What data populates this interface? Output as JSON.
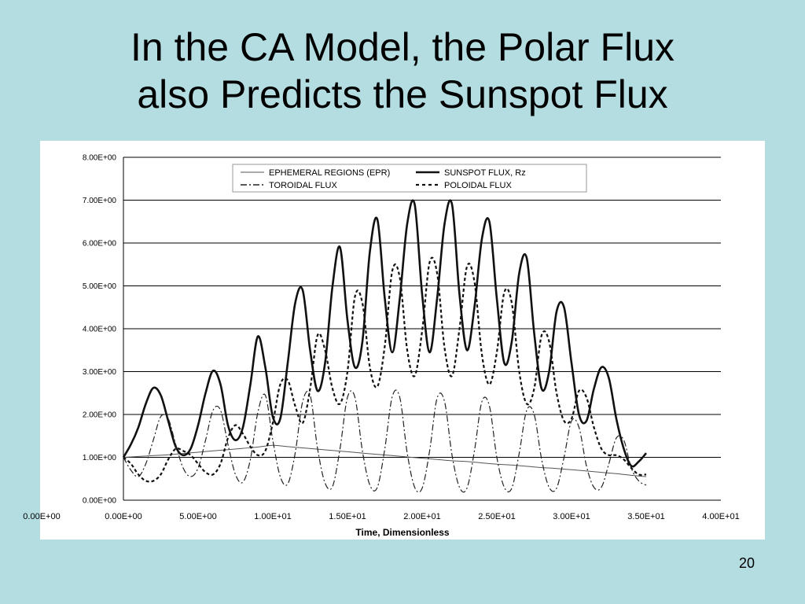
{
  "slide": {
    "title_line1": "In the CA Model, the Polar Flux",
    "title_line2": "also Predicts the Sunspot Flux",
    "page_number": "20"
  },
  "chart_data": {
    "type": "line",
    "title": "",
    "xlabel": "Time, Dimensionless",
    "ylabel": "",
    "xlim": [
      0,
      40
    ],
    "ylim": [
      0,
      8
    ],
    "x_ticks": [
      0,
      5,
      10,
      15,
      20,
      25,
      30,
      35,
      40
    ],
    "x_tick_labels": [
      "0.00E+00",
      "5.00E+00",
      "1.00E+01",
      "1.50E+01",
      "2.00E+01",
      "2.50E+01",
      "3.00E+01",
      "3.50E+01",
      "4.00E+01"
    ],
    "x_tick_label_extra": "0.00E+00",
    "y_ticks": [
      0,
      1,
      2,
      3,
      4,
      5,
      6,
      7,
      8
    ],
    "y_tick_labels": [
      "0.00E+00",
      "1.00E+00",
      "2.00E+00",
      "3.00E+00",
      "4.00E+00",
      "5.00E+00",
      "6.00E+00",
      "7.00E+00",
      "8.00E+00"
    ],
    "grid": "horizontal",
    "legend_placement": "top",
    "series": [
      {
        "name": "EPHEMERAL REGIONS (EPR)",
        "style": "thin",
        "x": [
          0,
          1,
          2,
          3,
          4,
          5,
          6,
          7,
          8,
          9,
          10,
          11,
          12,
          13,
          14,
          15,
          16,
          17,
          18,
          19,
          20,
          21,
          22,
          23,
          24,
          25,
          26,
          27,
          28,
          29,
          30,
          31,
          32,
          33,
          34,
          35
        ],
        "values": [
          1.0,
          1.02,
          1.04,
          1.06,
          1.09,
          1.12,
          1.15,
          1.18,
          1.21,
          1.24,
          1.28,
          1.25,
          1.22,
          1.19,
          1.16,
          1.13,
          1.1,
          1.07,
          1.04,
          1.01,
          0.98,
          0.95,
          0.92,
          0.9,
          0.87,
          0.84,
          0.82,
          0.79,
          0.76,
          0.74,
          0.71,
          0.68,
          0.65,
          0.62,
          0.58,
          0.55
        ]
      },
      {
        "name": "SUNSPOT FLUX, Rz",
        "style": "thick",
        "x": [
          0,
          0.5,
          1,
          1.5,
          2,
          2.5,
          3,
          3.5,
          4,
          4.5,
          5,
          5.5,
          6,
          6.5,
          7,
          7.5,
          8,
          8.5,
          9,
          9.5,
          10,
          10.5,
          11,
          11.5,
          12,
          12.5,
          13,
          13.5,
          14,
          14.5,
          15,
          15.5,
          16,
          16.5,
          17,
          17.5,
          18,
          18.5,
          19,
          19.5,
          20,
          20.5,
          21,
          21.5,
          22,
          22.5,
          23,
          23.5,
          24,
          24.5,
          25,
          25.5,
          26,
          26.5,
          27,
          27.5,
          28,
          28.5,
          29,
          29.5,
          30,
          30.5,
          31,
          31.5,
          32,
          32.5,
          33,
          33.5,
          34,
          34.5,
          35
        ],
        "values": [
          1.0,
          1.3,
          1.7,
          2.25,
          2.62,
          2.45,
          1.85,
          1.25,
          1.05,
          1.2,
          1.75,
          2.5,
          3.02,
          2.7,
          1.75,
          1.4,
          1.7,
          2.7,
          3.82,
          3.1,
          1.95,
          1.9,
          3.2,
          4.6,
          4.9,
          3.5,
          2.55,
          3.2,
          5.0,
          5.9,
          4.2,
          3.1,
          3.7,
          5.8,
          6.55,
          4.7,
          3.45,
          4.7,
          6.45,
          6.9,
          4.8,
          3.45,
          4.7,
          6.45,
          6.9,
          4.8,
          3.5,
          4.5,
          6.1,
          6.5,
          4.7,
          3.2,
          3.7,
          5.3,
          5.65,
          3.9,
          2.6,
          3.0,
          4.4,
          4.5,
          3.2,
          2.0,
          1.85,
          2.6,
          3.1,
          2.85,
          1.9,
          1.2,
          0.8,
          0.9,
          1.1
        ]
      },
      {
        "name": "TOROIDAL FLUX",
        "style": "dash-dot",
        "x": [
          0,
          0.5,
          1,
          1.5,
          2,
          2.5,
          3,
          3.5,
          4,
          4.5,
          5,
          5.5,
          6,
          6.5,
          7,
          7.5,
          8,
          8.5,
          9,
          9.5,
          10,
          10.5,
          11,
          11.5,
          12,
          12.5,
          13,
          13.5,
          14,
          14.5,
          15,
          15.5,
          16,
          16.5,
          17,
          17.5,
          18,
          18.5,
          19,
          19.5,
          20,
          20.5,
          21,
          21.5,
          22,
          22.5,
          23,
          23.5,
          24,
          24.5,
          25,
          25.5,
          26,
          26.5,
          27,
          27.5,
          28,
          28.5,
          29,
          29.5,
          30,
          30.5,
          31,
          31.5,
          32,
          32.5,
          33,
          33.5,
          34,
          34.5,
          35
        ],
        "values": [
          1.0,
          0.7,
          0.55,
          0.85,
          1.4,
          1.95,
          1.9,
          1.3,
          0.75,
          0.55,
          0.75,
          1.4,
          2.1,
          2.1,
          1.3,
          0.6,
          0.42,
          0.95,
          2.05,
          2.45,
          1.4,
          0.55,
          0.38,
          1.1,
          2.3,
          2.45,
          1.2,
          0.4,
          0.32,
          1.2,
          2.4,
          2.4,
          1.15,
          0.35,
          0.3,
          1.2,
          2.42,
          2.4,
          1.1,
          0.3,
          0.28,
          1.15,
          2.38,
          2.3,
          1.05,
          0.3,
          0.28,
          1.15,
          2.3,
          2.2,
          1.0,
          0.3,
          0.28,
          1.1,
          2.1,
          2.0,
          0.95,
          0.3,
          0.28,
          1.0,
          1.85,
          1.7,
          0.8,
          0.3,
          0.3,
          0.85,
          1.45,
          1.4,
          0.75,
          0.45,
          0.35
        ]
      },
      {
        "name": "POLOIDAL FLUX",
        "style": "dotted",
        "x": [
          0,
          0.5,
          1,
          1.5,
          2,
          2.5,
          3,
          3.5,
          4,
          4.5,
          5,
          5.5,
          6,
          6.5,
          7,
          7.5,
          8,
          8.5,
          9,
          9.5,
          10,
          10.5,
          11,
          11.5,
          12,
          12.5,
          13,
          13.5,
          14,
          14.5,
          15,
          15.5,
          16,
          16.5,
          17,
          17.5,
          18,
          18.5,
          19,
          19.5,
          20,
          20.5,
          21,
          21.5,
          22,
          22.5,
          23,
          23.5,
          24,
          24.5,
          25,
          25.5,
          26,
          26.5,
          27,
          27.5,
          28,
          28.5,
          29,
          29.5,
          30,
          30.5,
          31,
          31.5,
          32,
          32.5,
          33,
          33.5,
          34,
          34.5,
          35
        ],
        "values": [
          1.0,
          0.85,
          0.6,
          0.45,
          0.45,
          0.6,
          0.95,
          1.2,
          1.15,
          1.05,
          0.85,
          0.65,
          0.6,
          0.85,
          1.45,
          1.75,
          1.55,
          1.25,
          1.05,
          1.15,
          1.8,
          2.7,
          2.8,
          2.2,
          1.8,
          2.6,
          3.85,
          3.5,
          2.6,
          2.25,
          3.0,
          4.75,
          4.6,
          3.1,
          2.65,
          3.6,
          5.35,
          5.2,
          3.5,
          2.9,
          3.95,
          5.55,
          5.3,
          3.55,
          2.9,
          4.0,
          5.45,
          5.1,
          3.4,
          2.7,
          3.45,
          4.85,
          4.6,
          3.0,
          2.25,
          2.6,
          3.85,
          3.7,
          2.5,
          1.85,
          1.9,
          2.55,
          2.4,
          1.7,
          1.2,
          1.05,
          1.05,
          0.95,
          0.75,
          0.6,
          0.6
        ]
      }
    ]
  }
}
